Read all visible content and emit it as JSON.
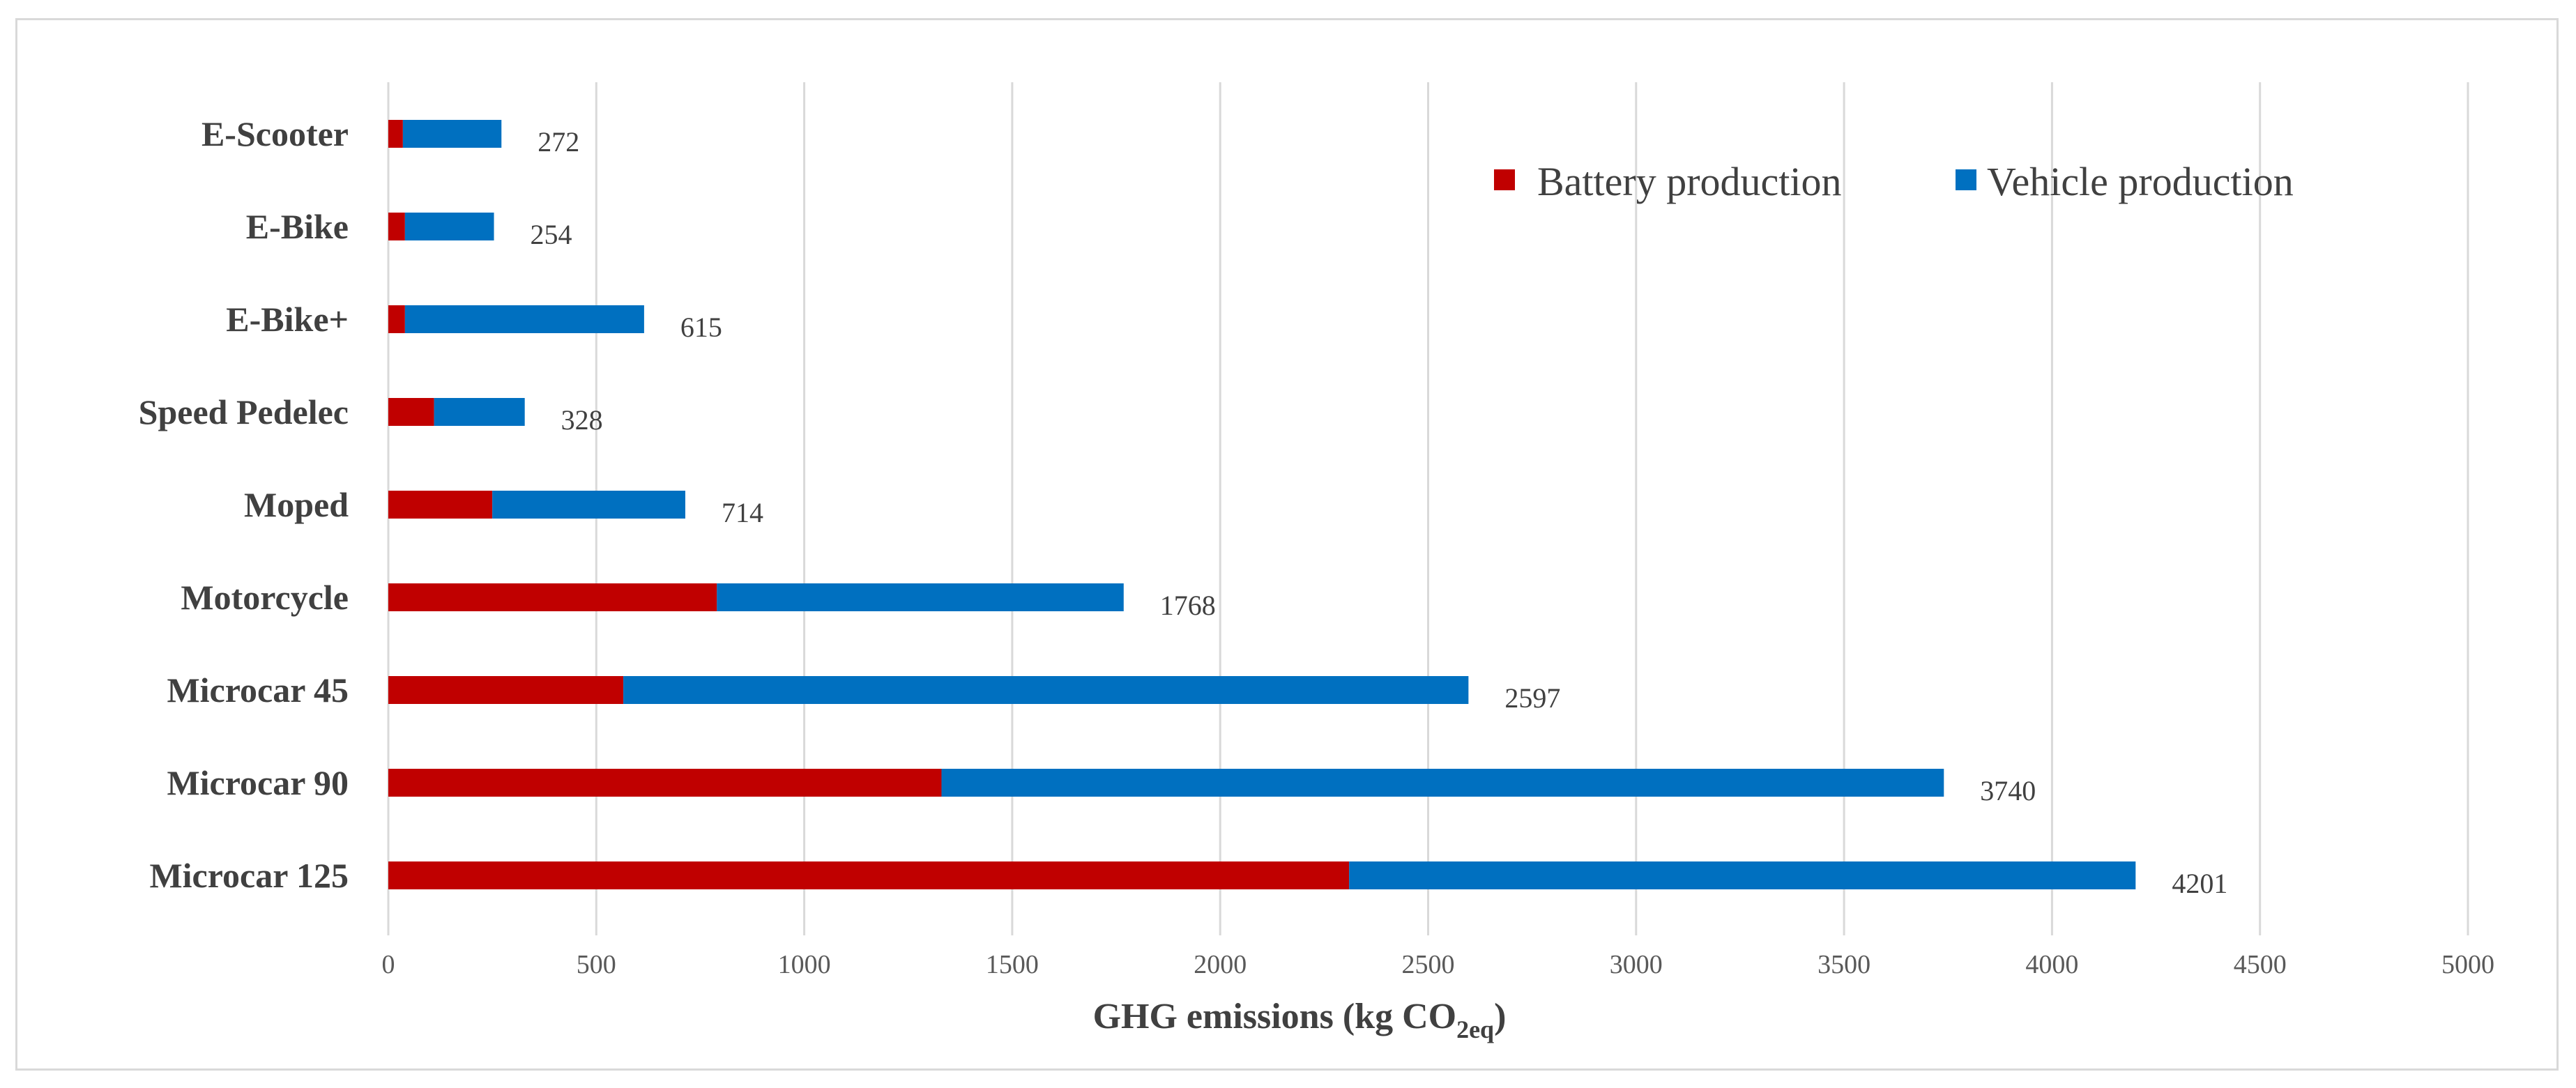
{
  "chart_data": {
    "type": "bar",
    "orientation": "horizontal",
    "stacked": true,
    "categories": [
      "E-Scooter",
      "E-Bike",
      "E-Bike+",
      "Speed Pedelec",
      "Moped",
      "Motorcycle",
      "Microcar 45",
      "Microcar 90",
      "Microcar 125"
    ],
    "series": [
      {
        "name": "Battery production",
        "color": "#c00000",
        "values": [
          35,
          40,
          40,
          110,
          250,
          790,
          565,
          1330,
          2310
        ]
      },
      {
        "name": "Vehicle production",
        "color": "#0070c0",
        "values": [
          237,
          214,
          575,
          218,
          464,
          978,
          2032,
          2410,
          1891
        ]
      }
    ],
    "totals": [
      272,
      254,
      615,
      328,
      714,
      1768,
      2597,
      3740,
      4201
    ],
    "total_labels": [
      "272",
      "254",
      "615",
      "328",
      "714",
      "1768",
      "2597",
      "3740",
      "4201"
    ],
    "xlim": [
      0,
      5000
    ],
    "x_ticks": [
      "0",
      "500",
      "1000",
      "1500",
      "2000",
      "2500",
      "3000",
      "3500",
      "4000",
      "4500",
      "5000"
    ],
    "x_tick_values": [
      0,
      500,
      1000,
      1500,
      2000,
      2500,
      3000,
      3500,
      4000,
      4500,
      5000
    ],
    "xlabel_main": "GHG emissions (kg CO",
    "xlabel_sub": "2eq",
    "xlabel_close": ")",
    "ylabel": "",
    "grid": true,
    "legend_position": "top-right",
    "gridline_color": "#d9d9d9"
  }
}
